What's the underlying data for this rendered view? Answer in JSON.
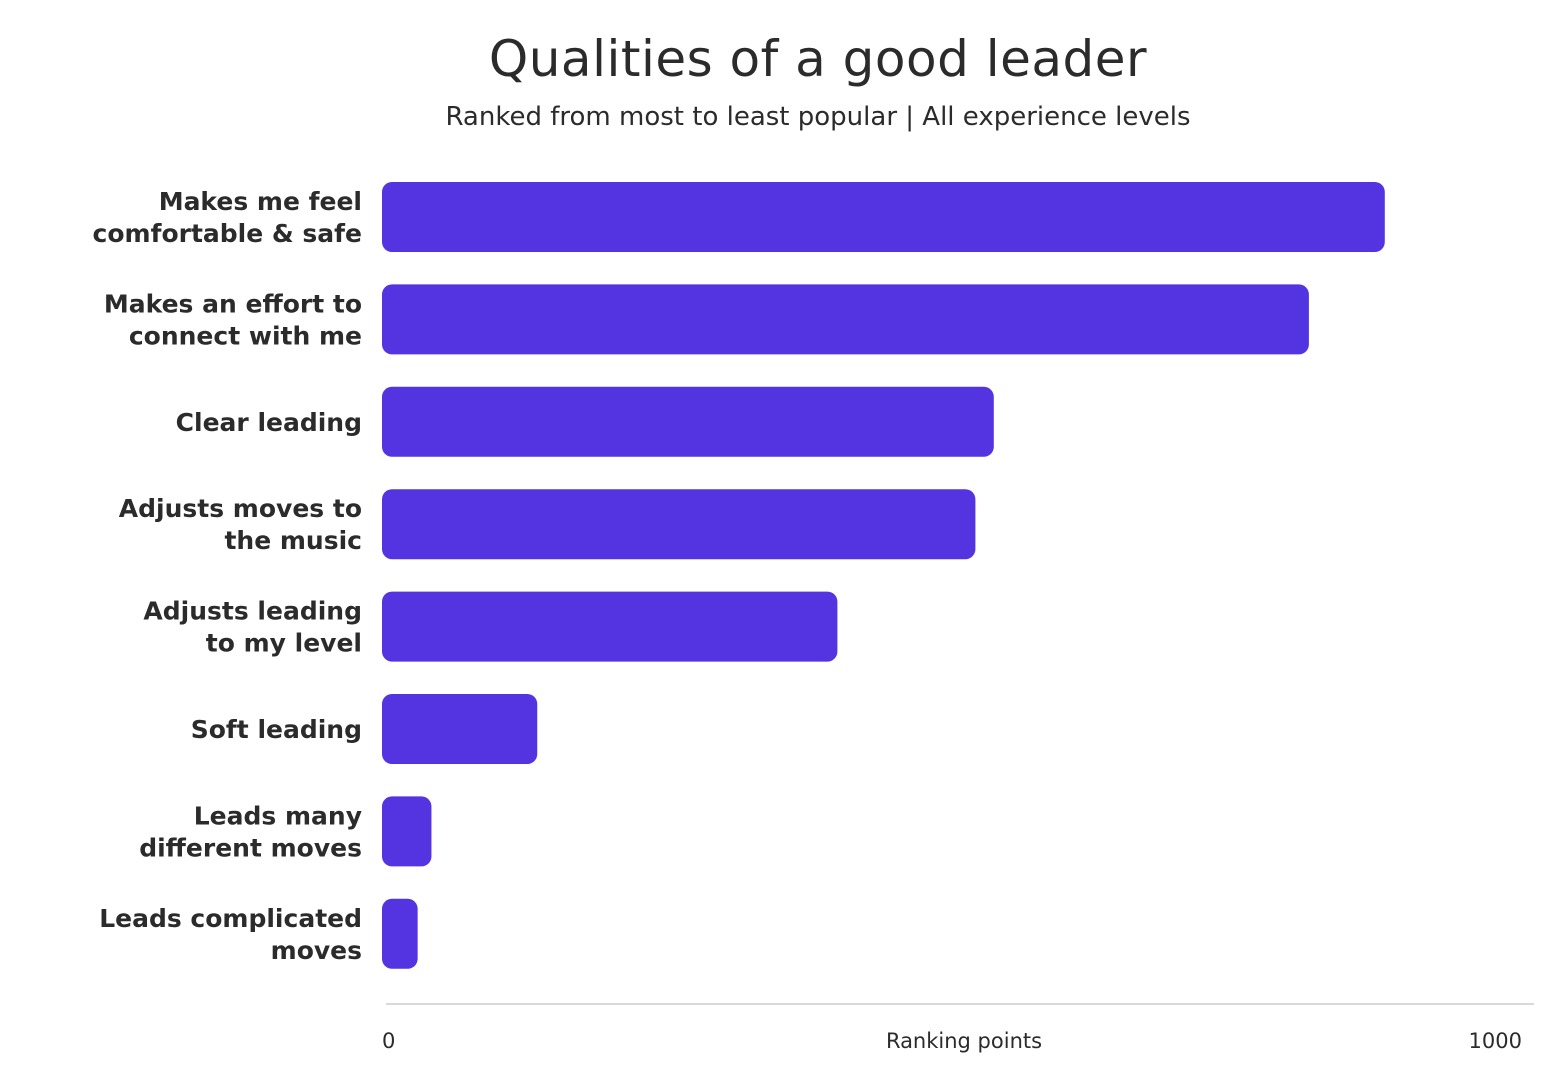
{
  "chart_data": {
    "type": "bar",
    "orientation": "horizontal",
    "title": "Qualities of a good leader",
    "subtitle": "Ranked from most to least popular | All experience levels",
    "xlabel": "Ranking points",
    "ylabel": "",
    "xlim": [
      0,
      1000
    ],
    "x_ticks": [
      "0",
      "1000"
    ],
    "grid": false,
    "bar_color": "#5433e1",
    "categories": [
      [
        "Makes me feel",
        "comfortable & safe"
      ],
      [
        "Makes an effort to",
        "connect with me"
      ],
      [
        "Clear leading"
      ],
      [
        "Adjusts moves to",
        "the music"
      ],
      [
        "Adjusts leading",
        "to my level"
      ],
      [
        "Soft leading"
      ],
      [
        "Leads many",
        "different moves"
      ],
      [
        "Leads complicated",
        "moves"
      ]
    ],
    "values": [
      872,
      806,
      532,
      516,
      396,
      135,
      43,
      31
    ]
  }
}
